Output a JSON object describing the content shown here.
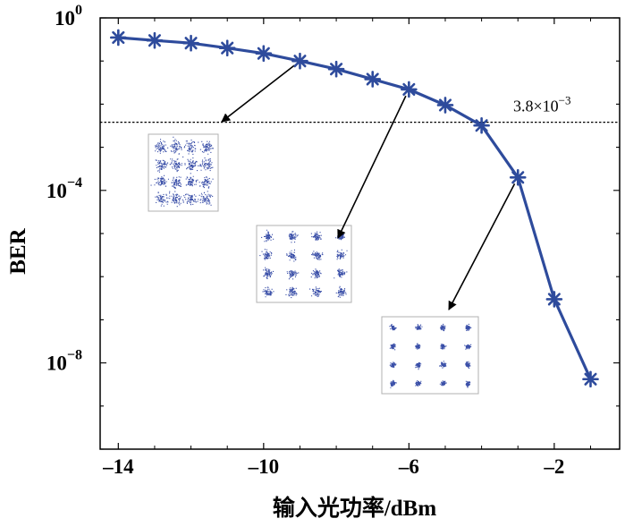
{
  "chart_data": {
    "type": "line",
    "xlabel": "输入光功率/dBm",
    "ylabel": "BER",
    "x_scale": "linear",
    "y_scale": "log",
    "xlim": [
      -14.5,
      -0.2
    ],
    "ylim_exponent": [
      -10,
      0
    ],
    "x_ticks": [
      -14,
      -10,
      -6,
      -2
    ],
    "x_tick_labels": [
      "–14",
      "–10",
      "–6",
      "–2"
    ],
    "y_ticks_exponent": [
      0,
      -4,
      -8
    ],
    "y_tick_base": "10",
    "y_tick_exponent_labels": [
      "0",
      "−4",
      "−8"
    ],
    "series": [
      {
        "color": "#2e4b9c",
        "marker": "asterisk",
        "x": [
          -14,
          -13,
          -12,
          -11,
          -10,
          -9,
          -8,
          -7,
          -6,
          -5,
          -4,
          -3,
          -2,
          -1
        ],
        "y": [
          0.35,
          0.3,
          0.26,
          0.2,
          0.15,
          0.1,
          0.065,
          0.038,
          0.022,
          0.0095,
          0.0032,
          0.0002,
          3e-07,
          4.2e-09
        ]
      }
    ],
    "threshold": {
      "value": 0.0038,
      "style": "dotted",
      "label_mantissa": "3.8",
      "label_times": "×10",
      "label_exponent": "−3"
    },
    "insets": [
      {
        "name": "constellation-16qam-low",
        "x": -9,
        "y": 0.1,
        "spread": "large"
      },
      {
        "name": "constellation-16qam-mid",
        "x": -6,
        "y": 0.022,
        "spread": "medium"
      },
      {
        "name": "constellation-16qam-high",
        "x": -3,
        "y": 0.0002,
        "spread": "small"
      }
    ],
    "grid": false
  }
}
